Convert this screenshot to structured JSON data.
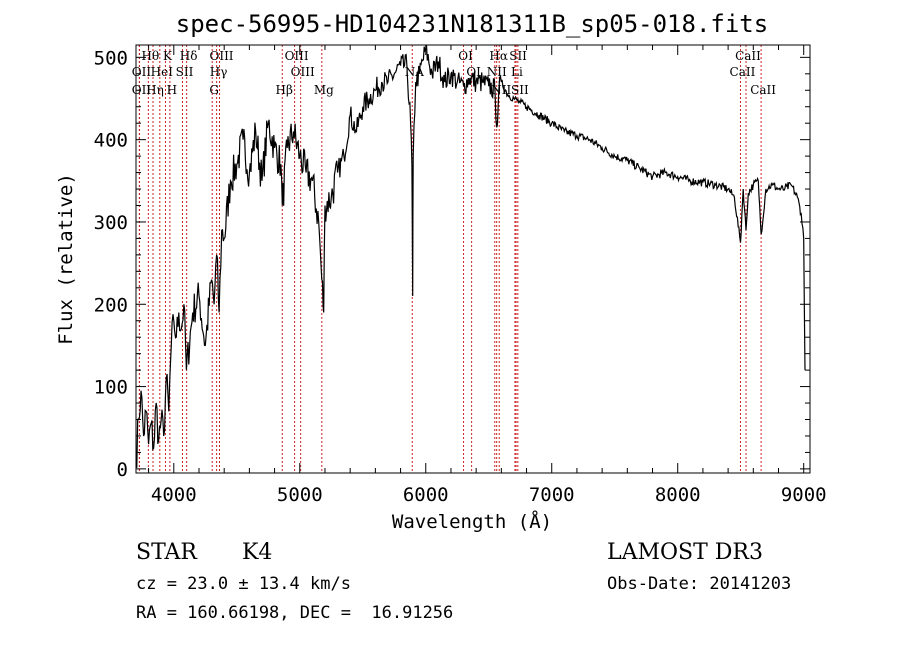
{
  "chart_data": {
    "type": "line",
    "title": "spec-56995-HD104231N181311B_sp05-018.fits",
    "xlabel": "Wavelength (Å)",
    "ylabel": "Flux (relative)",
    "xlim": [
      3700,
      9050
    ],
    "ylim": [
      -5,
      515
    ],
    "xticks": [
      4000,
      5000,
      6000,
      7000,
      8000,
      9000
    ],
    "yticks": [
      0,
      100,
      200,
      300,
      400,
      500
    ],
    "grid": false,
    "series": [
      {
        "name": "flux",
        "color": "#000000",
        "x": [
          3700,
          3720,
          3740,
          3760,
          3780,
          3800,
          3820,
          3840,
          3860,
          3880,
          3900,
          3920,
          3940,
          3960,
          3980,
          4000,
          4020,
          4040,
          4060,
          4080,
          4100,
          4150,
          4200,
          4250,
          4300,
          4320,
          4340,
          4360,
          4380,
          4400,
          4450,
          4500,
          4550,
          4600,
          4650,
          4700,
          4750,
          4800,
          4850,
          4861,
          4900,
          4950,
          5000,
          5050,
          5100,
          5150,
          5175,
          5190,
          5200,
          5250,
          5300,
          5350,
          5400,
          5450,
          5500,
          5550,
          5600,
          5650,
          5700,
          5750,
          5800,
          5850,
          5880,
          5890,
          5896,
          5900,
          5920,
          5950,
          6000,
          6050,
          6100,
          6150,
          6200,
          6250,
          6300,
          6350,
          6400,
          6450,
          6500,
          6550,
          6563,
          6580,
          6600,
          6650,
          6700,
          6750,
          6800,
          6900,
          7000,
          7100,
          7200,
          7300,
          7400,
          7500,
          7600,
          7700,
          7800,
          7900,
          8000,
          8100,
          8200,
          8300,
          8400,
          8450,
          8498,
          8520,
          8542,
          8560,
          8600,
          8640,
          8662,
          8700,
          8750,
          8800,
          8850,
          8900,
          8950,
          8980,
          9000,
          9010
        ],
        "values": [
          5,
          60,
          95,
          40,
          70,
          30,
          55,
          25,
          80,
          35,
          60,
          40,
          110,
          70,
          150,
          180,
          160,
          190,
          170,
          200,
          120,
          190,
          210,
          150,
          230,
          200,
          260,
          190,
          290,
          280,
          350,
          370,
          400,
          360,
          410,
          350,
          420,
          390,
          370,
          320,
          390,
          410,
          380,
          360,
          350,
          300,
          230,
          190,
          320,
          330,
          360,
          380,
          430,
          410,
          440,
          450,
          460,
          470,
          470,
          480,
          490,
          490,
          420,
          370,
          210,
          380,
          470,
          480,
          510,
          480,
          495,
          470,
          480,
          470,
          465,
          475,
          470,
          470,
          465,
          460,
          415,
          460,
          470,
          455,
          450,
          445,
          440,
          430,
          420,
          410,
          405,
          400,
          390,
          380,
          375,
          365,
          355,
          360,
          355,
          350,
          348,
          345,
          340,
          330,
          275,
          340,
          290,
          335,
          345,
          350,
          285,
          340,
          345,
          340,
          340,
          345,
          330,
          310,
          280,
          120
        ]
      }
    ],
    "spectral_lines": [
      {
        "label": "Hθ",
        "x": 3798,
        "row": 0
      },
      {
        "label": "OII",
        "x": 3727,
        "row": 1
      },
      {
        "label": "OII",
        "x": 3727,
        "row": 2
      },
      {
        "label": "K",
        "x": 3934,
        "row": 0
      },
      {
        "label": "Hδ",
        "x": 4102,
        "row": 0
      },
      {
        "label": "HeI",
        "x": 3889,
        "row": 1
      },
      {
        "label": "SII",
        "x": 4069,
        "row": 1
      },
      {
        "label": "Hη",
        "x": 3835,
        "row": 2
      },
      {
        "label": "H",
        "x": 3969,
        "row": 2
      },
      {
        "label": "OIII",
        "x": 4363,
        "row": 0
      },
      {
        "label": "Hγ",
        "x": 4340,
        "row": 1
      },
      {
        "label": "G",
        "x": 4305,
        "row": 2
      },
      {
        "label": "Hβ",
        "x": 4861,
        "row": 2
      },
      {
        "label": "OIII",
        "x": 4959,
        "row": 0
      },
      {
        "label": "OIII",
        "x": 5007,
        "row": 1
      },
      {
        "label": "Mg",
        "x": 5175,
        "row": 2
      },
      {
        "label": "NA",
        "x": 5893,
        "row": 1
      },
      {
        "label": "OI",
        "x": 6300,
        "row": 0
      },
      {
        "label": "OI",
        "x": 6364,
        "row": 1
      },
      {
        "label": "Hα",
        "x": 6563,
        "row": 0
      },
      {
        "label": "SII",
        "x": 6717,
        "row": 0
      },
      {
        "label": "NII",
        "x": 6548,
        "row": 1
      },
      {
        "label": "Li",
        "x": 6708,
        "row": 1
      },
      {
        "label": "NII",
        "x": 6583,
        "row": 2
      },
      {
        "label": "SII",
        "x": 6731,
        "row": 2
      },
      {
        "label": "CaII",
        "x": 8542,
        "row": 0
      },
      {
        "label": "CaII",
        "x": 8498,
        "row": 1
      },
      {
        "label": "CaII",
        "x": 8662,
        "row": 2
      }
    ],
    "line_colors": {
      "spectrum": "#000000",
      "markers": "#cc2222"
    }
  },
  "info": {
    "class": "STAR",
    "subclass": "K4",
    "survey": "LAMOST DR3",
    "redshift": "cz = 23.0 ± 13.4 km/s",
    "obs_date": "Obs-Date: 20141203",
    "coords": "RA = 160.66198, DEC =  16.91256"
  }
}
